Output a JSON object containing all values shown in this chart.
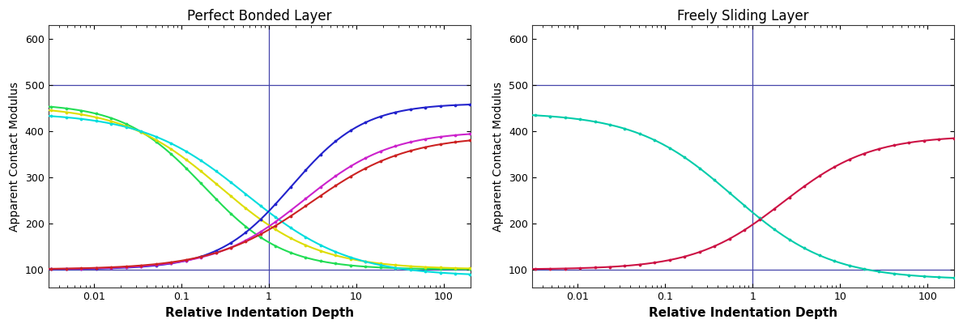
{
  "left_title": "Perfect Bonded Layer",
  "right_title": "Freely Sliding Layer",
  "xlabel": "Relative Indentation Depth",
  "ylabel": "Apparent Contact Modulus",
  "xlim": [
    0.003,
    200
  ],
  "ylim": [
    60,
    630
  ],
  "yticks": [
    100,
    200,
    300,
    400,
    500,
    600
  ],
  "hline_y": [
    100,
    500
  ],
  "vline_x": 1.0,
  "line_width": 1.5,
  "hline_color": "#4444aa",
  "vline_color": "#4444aa",
  "background_color": "#ffffff",
  "left_curves": [
    {
      "E_high": 460,
      "E_low": 100,
      "x0": 0.18,
      "k": 1.1,
      "direction": "dec",
      "color": "#22dd55"
    },
    {
      "E_high": 455,
      "E_low": 100,
      "x0": 0.28,
      "k": 0.9,
      "direction": "dec",
      "color": "#dddd00"
    },
    {
      "E_high": 440,
      "E_low": 85,
      "x0": 0.55,
      "k": 0.85,
      "direction": "dec",
      "color": "#00dddd"
    },
    {
      "E_high": 460,
      "E_low": 100,
      "x0": 1.8,
      "k": 1.2,
      "direction": "inc",
      "color": "#2222cc"
    },
    {
      "E_high": 400,
      "E_low": 100,
      "x0": 2.5,
      "k": 1.0,
      "direction": "inc",
      "color": "#cc22cc"
    },
    {
      "E_high": 390,
      "E_low": 100,
      "x0": 3.0,
      "k": 0.9,
      "direction": "inc",
      "color": "#cc2222"
    }
  ],
  "right_curves": [
    {
      "E_high": 440,
      "E_low": 78,
      "x0": 0.6,
      "k": 0.9,
      "direction": "dec",
      "color": "#00ccaa"
    },
    {
      "E_high": 390,
      "E_low": 100,
      "x0": 2.2,
      "k": 1.0,
      "direction": "inc",
      "color": "#cc1144"
    }
  ],
  "xtick_labels": [
    "0.01",
    "0.1",
    "1",
    "10",
    "100"
  ],
  "xtick_positions": [
    0.01,
    0.1,
    1,
    10,
    100
  ]
}
